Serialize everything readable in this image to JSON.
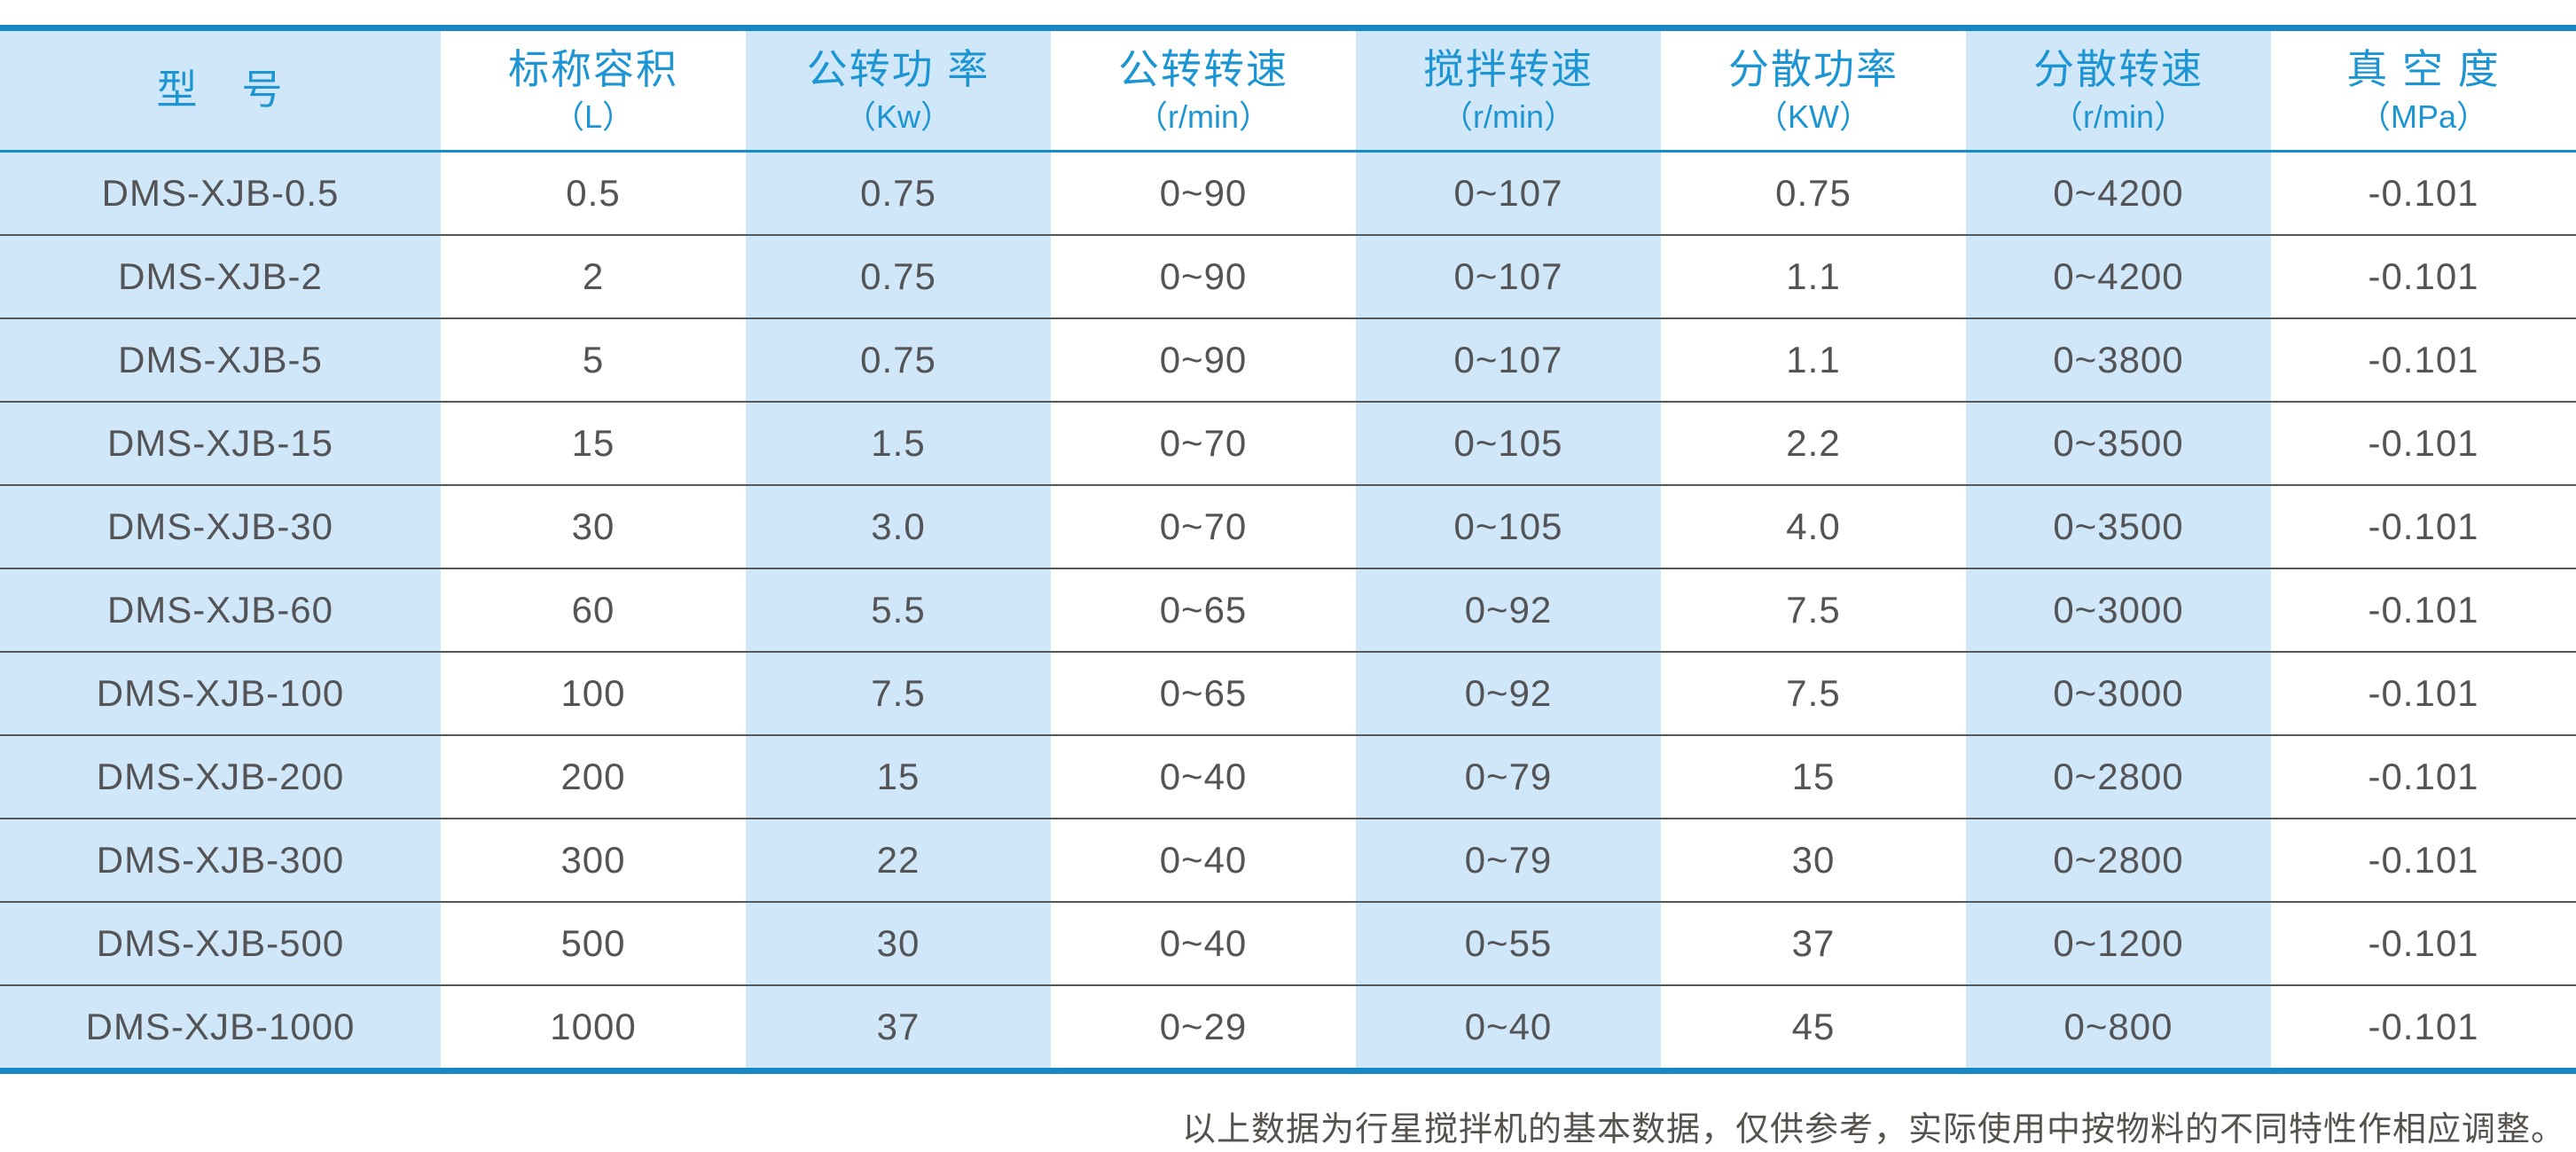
{
  "table": {
    "columns": [
      {
        "title": "型　号",
        "unit": ""
      },
      {
        "title": "标称容积",
        "unit": "（L）"
      },
      {
        "title": "公转功 率",
        "unit": "（Kw）"
      },
      {
        "title": "公转转速",
        "unit": "（r/min）"
      },
      {
        "title": "搅拌转速",
        "unit": "（r/min）"
      },
      {
        "title": "分散功率",
        "unit": "（KW）"
      },
      {
        "title": "分散转速",
        "unit": "（r/min）"
      },
      {
        "title": "真 空 度",
        "unit": "（MPa）"
      }
    ],
    "rows": [
      [
        "DMS-XJB-0.5",
        "0.5",
        "0.75",
        "0~90",
        "0~107",
        "0.75",
        "0~4200",
        "-0.101"
      ],
      [
        "DMS-XJB-2",
        "2",
        "0.75",
        "0~90",
        "0~107",
        "1.1",
        "0~4200",
        "-0.101"
      ],
      [
        "DMS-XJB-5",
        "5",
        "0.75",
        "0~90",
        "0~107",
        "1.1",
        "0~3800",
        "-0.101"
      ],
      [
        "DMS-XJB-15",
        "15",
        "1.5",
        "0~70",
        "0~105",
        "2.2",
        "0~3500",
        "-0.101"
      ],
      [
        "DMS-XJB-30",
        "30",
        "3.0",
        "0~70",
        "0~105",
        "4.0",
        "0~3500",
        "-0.101"
      ],
      [
        "DMS-XJB-60",
        "60",
        "5.5",
        "0~65",
        "0~92",
        "7.5",
        "0~3000",
        "-0.101"
      ],
      [
        "DMS-XJB-100",
        "100",
        "7.5",
        "0~65",
        "0~92",
        "7.5",
        "0~3000",
        "-0.101"
      ],
      [
        "DMS-XJB-200",
        "200",
        "15",
        "0~40",
        "0~79",
        "15",
        "0~2800",
        "-0.101"
      ],
      [
        "DMS-XJB-300",
        "300",
        "22",
        "0~40",
        "0~79",
        "30",
        "0~2800",
        "-0.101"
      ],
      [
        "DMS-XJB-500",
        "500",
        "30",
        "0~40",
        "0~55",
        "37",
        "0~1200",
        "-0.101"
      ],
      [
        "DMS-XJB-1000",
        "1000",
        "37",
        "0~29",
        "0~40",
        "45",
        "0~800",
        "-0.101"
      ]
    ]
  },
  "footer": {
    "note": "以上数据为行星搅拌机的基本数据，仅供参考，实际使用中按物料的不同特性作相应调整。"
  },
  "colors": {
    "accent_blue": "#1787c6",
    "header_text_blue": "#1e95d3",
    "stripe_light_blue": "#cfe7f8",
    "body_text": "#545456",
    "row_separator": "#55575b",
    "footer_text": "#56524e"
  }
}
